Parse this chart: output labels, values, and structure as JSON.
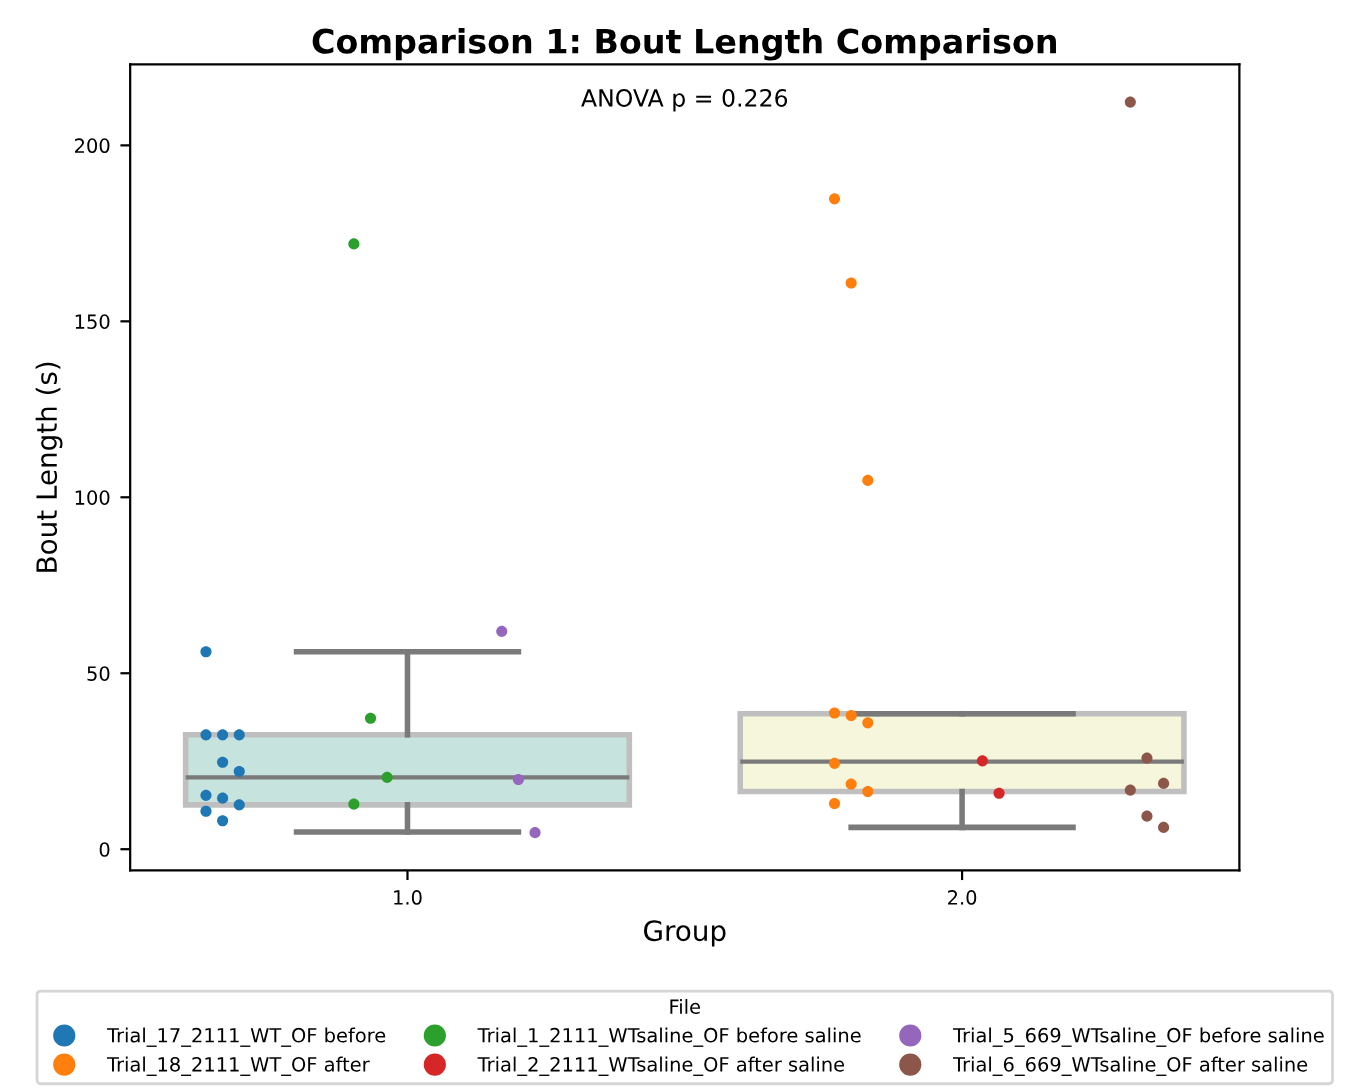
{
  "chart_data": {
    "type": "box",
    "title": "Comparison 1: Bout Length Comparison",
    "xlabel": "Group",
    "ylabel": "Bout Length (s)",
    "legend_title": "File",
    "annotations": [
      "ANOVA p = 0.226"
    ],
    "categories": [
      "1.0",
      "2.0"
    ],
    "colors": [
      "#c7e3de",
      "#f6f6dc"
    ],
    "boxes": [
      {
        "low": 4.9,
        "q1": 12.6,
        "median": 20.4,
        "q3": 32.5,
        "high": 56.1
      },
      {
        "low": 6.2,
        "q1": 16.4,
        "median": 24.9,
        "q3": 38.5,
        "high": 38.5
      }
    ],
    "series": [
      {
        "type": "scatter",
        "name": "Trial_17_2111_WT_OF before",
        "color": "#1f77b4",
        "x": [
          "1.0",
          "1.0",
          "1.0",
          "1.0",
          "1.0",
          "1.0",
          "1.0",
          "1.0",
          "1.0",
          "1.0",
          "1.0"
        ],
        "values": [
          56.1,
          32.5,
          32.5,
          32.5,
          24.7,
          22.1,
          15.3,
          14.5,
          12.6,
          10.8,
          8.1
        ]
      },
      {
        "type": "scatter",
        "name": "Trial_18_2111_WT_OF after",
        "color": "#ff7f0e",
        "x": [
          "2.0",
          "2.0",
          "2.0",
          "2.0",
          "2.0",
          "2.0",
          "2.0",
          "2.0",
          "2.0",
          "2.0"
        ],
        "values": [
          184.8,
          160.9,
          104.8,
          38.7,
          38.0,
          35.9,
          24.4,
          18.5,
          16.4,
          13.0
        ]
      },
      {
        "type": "scatter",
        "name": "Trial_1_2111_WTsaline_OF before saline",
        "color": "#2ca02c",
        "x": [
          "1.0",
          "1.0",
          "1.0",
          "1.0"
        ],
        "values": [
          172.0,
          37.2,
          20.4,
          12.8
        ]
      },
      {
        "type": "scatter",
        "name": "Trial_2_2111_WTsaline_OF after saline",
        "color": "#d62728",
        "x": [
          "2.0",
          "2.0"
        ],
        "values": [
          25.1,
          15.9
        ]
      },
      {
        "type": "scatter",
        "name": "Trial_5_669_WTsaline_OF before saline",
        "color": "#9467bd",
        "x": [
          "1.0",
          "1.0",
          "1.0"
        ],
        "values": [
          61.9,
          19.8,
          4.7
        ]
      },
      {
        "type": "scatter",
        "name": "Trial_6_669_WTsaline_OF after saline",
        "color": "#8c564b",
        "x": [
          "2.0",
          "2.0",
          "2.0",
          "2.0",
          "2.0",
          "2.0"
        ],
        "values": [
          212.3,
          25.9,
          18.7,
          16.8,
          9.4,
          6.2
        ]
      }
    ],
    "ylim": [
      -6,
      223
    ],
    "yticks": [
      0,
      50,
      100,
      150,
      200
    ],
    "grid": false,
    "legend": "bottom",
    "marker": "circle"
  }
}
